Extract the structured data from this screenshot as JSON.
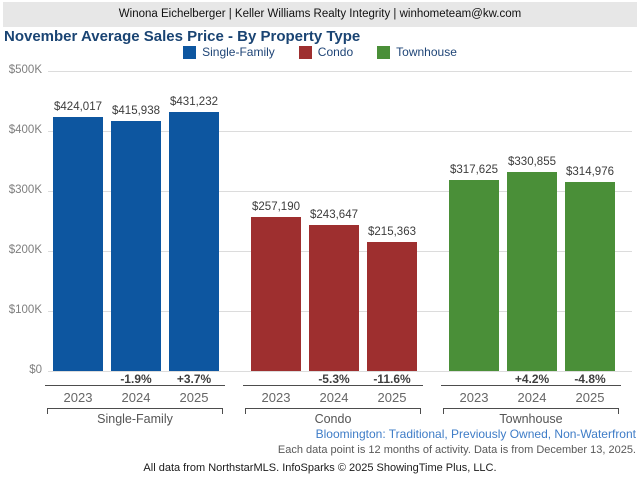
{
  "header": {
    "text": "Winona Eichelberger | Keller Williams Realty Integrity | winhometeam@kw.com"
  },
  "title": "November Average Sales Price - By Property Type",
  "chart_data": {
    "type": "bar",
    "title": "November Average Sales Price - By Property Type",
    "categories": [
      "2023",
      "2024",
      "2025"
    ],
    "series": [
      {
        "name": "Single-Family",
        "color": "#0d56a0",
        "values": [
          424017,
          415938,
          431232
        ],
        "value_labels": [
          "$424,017",
          "$415,938",
          "$431,232"
        ],
        "pct_change": [
          null,
          "-1.9%",
          "+3.7%"
        ]
      },
      {
        "name": "Condo",
        "color": "#9e2f2f",
        "values": [
          257190,
          243647,
          215363
        ],
        "value_labels": [
          "$257,190",
          "$243,647",
          "$215,363"
        ],
        "pct_change": [
          null,
          "-5.3%",
          "-11.6%"
        ]
      },
      {
        "name": "Townhouse",
        "color": "#4a8f38",
        "values": [
          317625,
          330855,
          314976
        ],
        "value_labels": [
          "$317,625",
          "$330,855",
          "$314,976"
        ],
        "pct_change": [
          null,
          "+4.2%",
          "-4.8%"
        ]
      }
    ],
    "ylim": [
      0,
      500000
    ],
    "y_ticks": [
      {
        "value": 500000,
        "label": "$500K"
      },
      {
        "value": 400000,
        "label": "$400K"
      },
      {
        "value": 300000,
        "label": "$300K"
      },
      {
        "value": 200000,
        "label": "$200K"
      },
      {
        "value": 100000,
        "label": "$100K"
      },
      {
        "value": 0,
        "label": "$0"
      }
    ],
    "grid": true,
    "legend_position": "top",
    "xlabel": "",
    "ylabel": ""
  },
  "footer": {
    "filters": "Bloomington: Traditional, Previously Owned, Non-Waterfront",
    "note": "Each data point is 12 months of activity. Data is from December 13, 2025.",
    "attribution": "All data from NorthstarMLS. InfoSparks © 2025 ShowingTime Plus, LLC."
  }
}
